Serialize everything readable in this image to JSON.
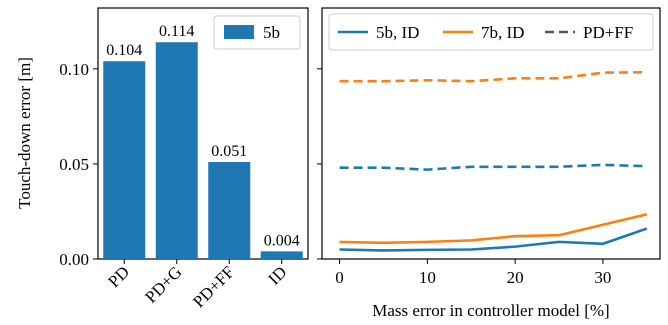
{
  "chart_data": [
    {
      "type": "bar",
      "ylabel": "Touch-down error [m]",
      "ylim": [
        0,
        0.132
      ],
      "yticks": [
        "0.00",
        "0.05",
        "0.10"
      ],
      "ytick_values": [
        0.0,
        0.05,
        0.1
      ],
      "categories": [
        "PD",
        "PD+G",
        "PD+FF",
        "ID"
      ],
      "series": [
        {
          "name": "5b",
          "color": "#1f77b4",
          "values": [
            0.104,
            0.114,
            0.051,
            0.004
          ]
        }
      ],
      "data_labels": [
        "0.104",
        "0.114",
        "0.051",
        "0.004"
      ],
      "legend": {
        "placement": "top-right",
        "entries": [
          "5b"
        ]
      },
      "grid": false
    },
    {
      "type": "line",
      "xlabel": "Mass error in controller model [%]",
      "xlim": [
        -2,
        36.5
      ],
      "ylim": [
        0,
        0.132
      ],
      "xticks": [
        "0",
        "10",
        "20",
        "30"
      ],
      "xtick_values": [
        0,
        10,
        20,
        30
      ],
      "x": [
        0,
        5,
        10,
        15,
        20,
        25,
        30,
        35
      ],
      "series": [
        {
          "name": "5b, ID",
          "color": "#1f77b4",
          "style": "solid",
          "values": [
            0.005,
            0.0045,
            0.0048,
            0.005,
            0.0065,
            0.009,
            0.008,
            0.016
          ]
        },
        {
          "name": "7b, ID",
          "color": "#ff7f0e",
          "style": "solid",
          "values": [
            0.009,
            0.0085,
            0.009,
            0.0098,
            0.012,
            0.0125,
            0.018,
            0.0235
          ]
        },
        {
          "name": "5b, PD+FF",
          "color": "#1f77b4",
          "style": "dashed",
          "values": [
            0.048,
            0.048,
            0.047,
            0.0485,
            0.0485,
            0.0485,
            0.0495,
            0.0488
          ]
        },
        {
          "name": "7b, PD+FF",
          "color": "#ff7f0e",
          "style": "dashed",
          "values": [
            0.0935,
            0.0935,
            0.094,
            0.0935,
            0.095,
            0.095,
            0.098,
            0.0982
          ]
        }
      ],
      "legend": {
        "placement": "top",
        "entries": [
          {
            "label": "5b, ID",
            "color": "#1f77b4",
            "style": "solid"
          },
          {
            "label": "7b, ID",
            "color": "#ff7f0e",
            "style": "solid"
          },
          {
            "label": "PD+FF",
            "color": "#555555",
            "style": "dashed"
          }
        ]
      },
      "grid": false
    }
  ]
}
